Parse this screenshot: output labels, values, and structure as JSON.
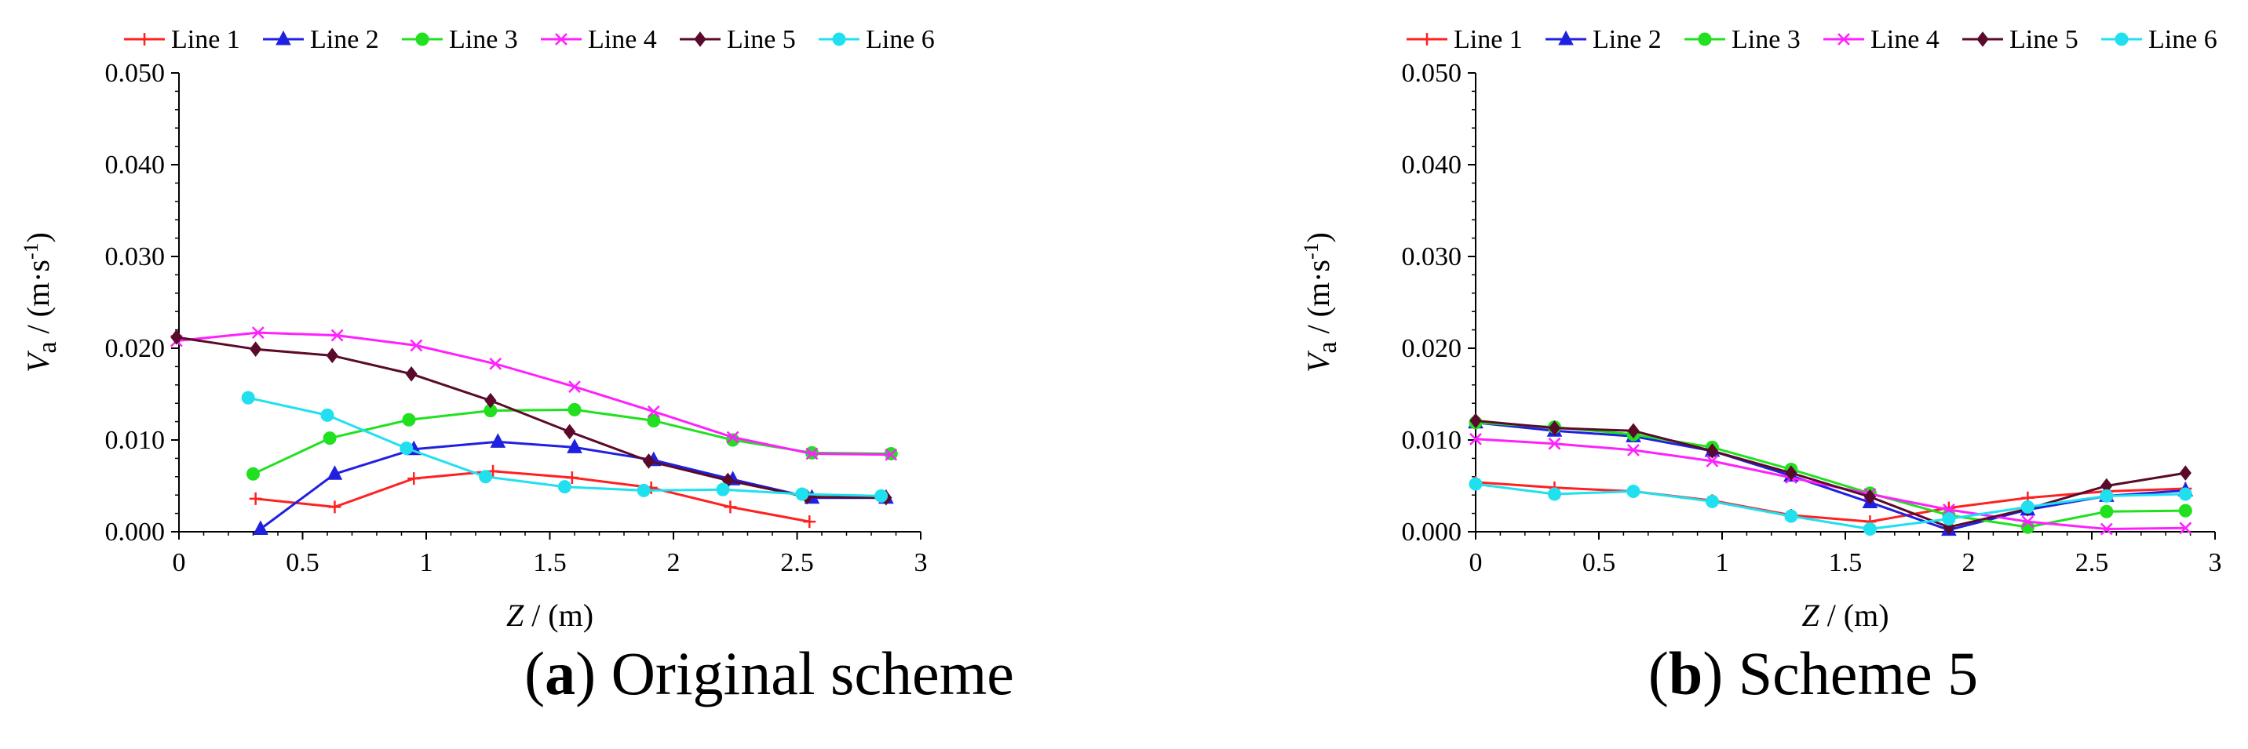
{
  "chart_data": [
    {
      "type": "line",
      "caption_label": "a",
      "caption_text": " Original scheme",
      "xlabel_symbol": "Z",
      "xlabel_unit": " / (m)",
      "ylabel_symbol": "V",
      "ylabel_subscript": "a",
      "ylabel_unit": " / (m·s",
      "ylabel_exp": "-1",
      "ylabel_close": ")",
      "xlim": [
        0,
        3
      ],
      "ylim": [
        0,
        0.05
      ],
      "xticks": [
        "0",
        "0.5",
        "1",
        "1.5",
        "2",
        "2.5",
        "3"
      ],
      "yticks": [
        "0.000",
        "0.010",
        "0.020",
        "0.030",
        "0.040",
        "0.050"
      ],
      "series": [
        {
          "name": "Line 1",
          "color": "#ff2020",
          "marker": "plus",
          "x": [
            0.31,
            0.63,
            0.95,
            1.27,
            1.59,
            1.91,
            2.23,
            2.55
          ],
          "y": [
            0.0036,
            0.0027,
            0.0058,
            0.0066,
            0.0059,
            0.0048,
            0.0027,
            0.0011
          ]
        },
        {
          "name": "Line 2",
          "color": "#2020e0",
          "marker": "triangle",
          "x": [
            0.33,
            0.63,
            0.95,
            1.29,
            1.6,
            1.92,
            2.24,
            2.56,
            2.86
          ],
          "y": [
            0.0003,
            0.0063,
            0.009,
            0.0098,
            0.0092,
            0.0078,
            0.0057,
            0.0037,
            0.0037
          ]
        },
        {
          "name": "Line 3",
          "color": "#20e020",
          "marker": "circle",
          "x": [
            0.3,
            0.61,
            0.93,
            1.26,
            1.6,
            1.92,
            2.24,
            2.56,
            2.88
          ],
          "y": [
            0.0063,
            0.0102,
            0.0122,
            0.0132,
            0.0133,
            0.0121,
            0.01,
            0.0086,
            0.0085
          ]
        },
        {
          "name": "Line 4",
          "color": "#ff20ff",
          "marker": "x",
          "x": [
            -0.01,
            0.32,
            0.64,
            0.96,
            1.28,
            1.6,
            1.92,
            2.24,
            2.56,
            2.88
          ],
          "y": [
            0.0208,
            0.0217,
            0.0214,
            0.0203,
            0.0183,
            0.0158,
            0.0131,
            0.0103,
            0.0085,
            0.0084
          ]
        },
        {
          "name": "Line 5",
          "color": "#5a0a2a",
          "marker": "diamond",
          "x": [
            -0.01,
            0.31,
            0.62,
            0.94,
            1.26,
            1.58,
            1.9,
            2.22,
            2.54,
            2.86
          ],
          "y": [
            0.0212,
            0.0199,
            0.0192,
            0.0172,
            0.0143,
            0.0109,
            0.0077,
            0.0056,
            0.0038,
            0.0037
          ]
        },
        {
          "name": "Line 6",
          "color": "#20e0f0",
          "marker": "circle",
          "x": [
            0.28,
            0.6,
            0.92,
            1.24,
            1.56,
            1.88,
            2.2,
            2.52,
            2.84
          ],
          "y": [
            0.0146,
            0.0127,
            0.0091,
            0.006,
            0.0049,
            0.0045,
            0.0046,
            0.0041,
            0.0039
          ]
        }
      ]
    },
    {
      "type": "line",
      "caption_label": "b",
      "caption_text": " Scheme 5",
      "xlabel_symbol": "Z",
      "xlabel_unit": " / (m)",
      "ylabel_symbol": "V",
      "ylabel_subscript": "a",
      "ylabel_unit": " / (m·s",
      "ylabel_exp": "-1",
      "ylabel_close": ")",
      "xlim": [
        0,
        3
      ],
      "ylim": [
        0,
        0.05
      ],
      "xticks": [
        "0",
        "0.5",
        "1",
        "1.5",
        "2",
        "2.5",
        "3"
      ],
      "yticks": [
        "0.000",
        "0.010",
        "0.020",
        "0.030",
        "0.040",
        "0.050"
      ],
      "series": [
        {
          "name": "Line 1",
          "color": "#ff2020",
          "marker": "plus",
          "x": [
            0,
            0.32,
            0.64,
            0.96,
            1.28,
            1.6,
            1.92,
            2.24,
            2.56,
            2.88
          ],
          "y": [
            0.0054,
            0.0048,
            0.0044,
            0.0034,
            0.0018,
            0.0011,
            0.0026,
            0.0037,
            0.0044,
            0.0047
          ]
        },
        {
          "name": "Line 2",
          "color": "#2020e0",
          "marker": "triangle",
          "x": [
            0,
            0.32,
            0.64,
            0.96,
            1.28,
            1.6,
            1.92,
            2.24,
            2.56,
            2.88
          ],
          "y": [
            0.0119,
            0.011,
            0.0104,
            0.0088,
            0.0061,
            0.0032,
            0.0002,
            0.0024,
            0.0039,
            0.0045
          ]
        },
        {
          "name": "Line 3",
          "color": "#20e020",
          "marker": "circle",
          "x": [
            0,
            0.32,
            0.64,
            0.96,
            1.28,
            1.6,
            1.92,
            2.24,
            2.56,
            2.88
          ],
          "y": [
            0.0119,
            0.0114,
            0.0106,
            0.0092,
            0.0068,
            0.0042,
            0.0018,
            0.0005,
            0.0022,
            0.0023
          ]
        },
        {
          "name": "Line 4",
          "color": "#ff20ff",
          "marker": "x",
          "x": [
            0,
            0.32,
            0.64,
            0.96,
            1.28,
            1.6,
            1.92,
            2.24,
            2.56,
            2.88
          ],
          "y": [
            0.0101,
            0.0096,
            0.0089,
            0.0077,
            0.0059,
            0.0041,
            0.0024,
            0.0011,
            0.0003,
            0.0004
          ]
        },
        {
          "name": "Line 5",
          "color": "#5a0a2a",
          "marker": "diamond",
          "x": [
            0,
            0.32,
            0.64,
            0.96,
            1.28,
            1.6,
            1.92,
            2.24,
            2.56,
            2.88
          ],
          "y": [
            0.0121,
            0.0113,
            0.011,
            0.0088,
            0.0064,
            0.0038,
            0.0005,
            0.0025,
            0.005,
            0.0064
          ]
        },
        {
          "name": "Line 6",
          "color": "#20e0f0",
          "marker": "circle",
          "x": [
            0,
            0.32,
            0.64,
            0.96,
            1.28,
            1.6,
            1.92,
            2.24,
            2.56,
            2.88
          ],
          "y": [
            0.0052,
            0.0041,
            0.0044,
            0.0033,
            0.0017,
            0.0003,
            0.0014,
            0.0027,
            0.0039,
            0.0041
          ]
        }
      ]
    }
  ]
}
